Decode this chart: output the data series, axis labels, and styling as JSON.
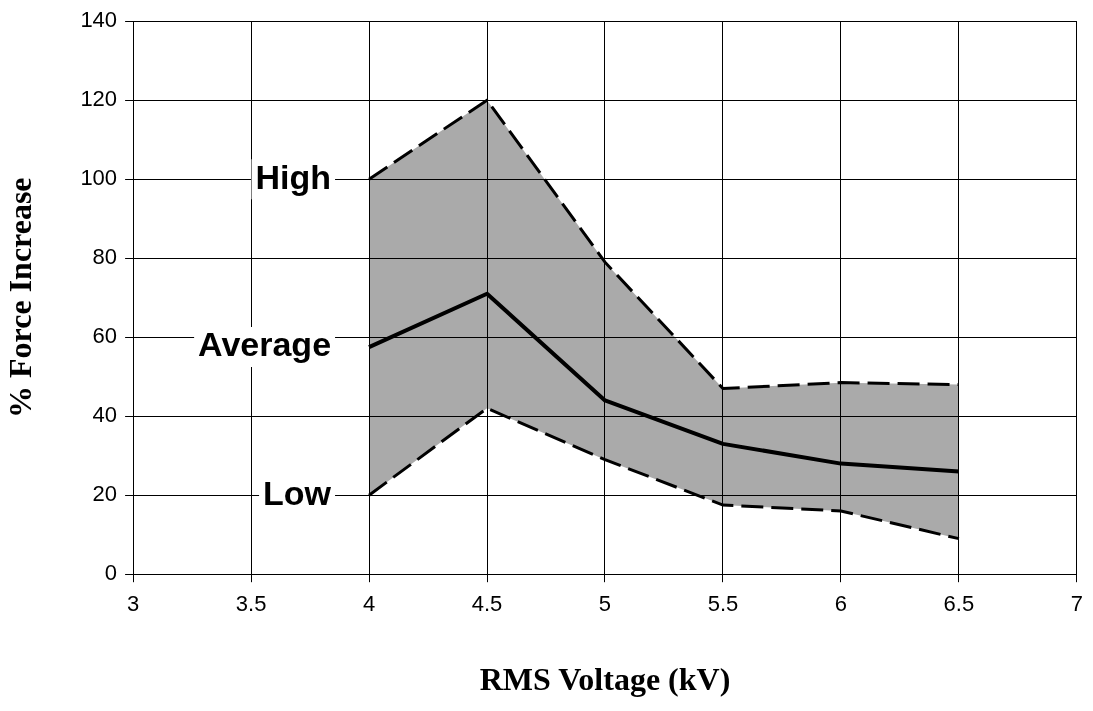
{
  "chart_data": {
    "type": "line",
    "xlabel": "RMS Voltage (kV)",
    "ylabel": "% Force Increase",
    "x": [
      4,
      4.5,
      5,
      5.5,
      6,
      6.5
    ],
    "series": [
      {
        "name": "Average",
        "color": "#000000",
        "values": [
          57.5,
          71,
          44,
          33,
          28,
          26
        ],
        "lower": [
          20,
          42,
          29,
          17.5,
          16,
          9
        ],
        "upper": [
          100,
          120,
          79,
          47,
          48.5,
          48
        ]
      }
    ],
    "annotations": [
      {
        "text": "High",
        "x": 4,
        "y": 100
      },
      {
        "text": "Low",
        "x": 4,
        "y": 20
      }
    ],
    "xlim": [
      3,
      7
    ],
    "xticks": [
      3,
      3.5,
      4,
      4.5,
      5,
      5.5,
      6,
      6.5,
      7
    ],
    "ylim": [
      0,
      140
    ],
    "yticks": [
      0,
      20,
      40,
      60,
      80,
      100,
      120,
      140
    ],
    "grid": true,
    "legend": false,
    "marker": "none",
    "line_style": "solid"
  }
}
